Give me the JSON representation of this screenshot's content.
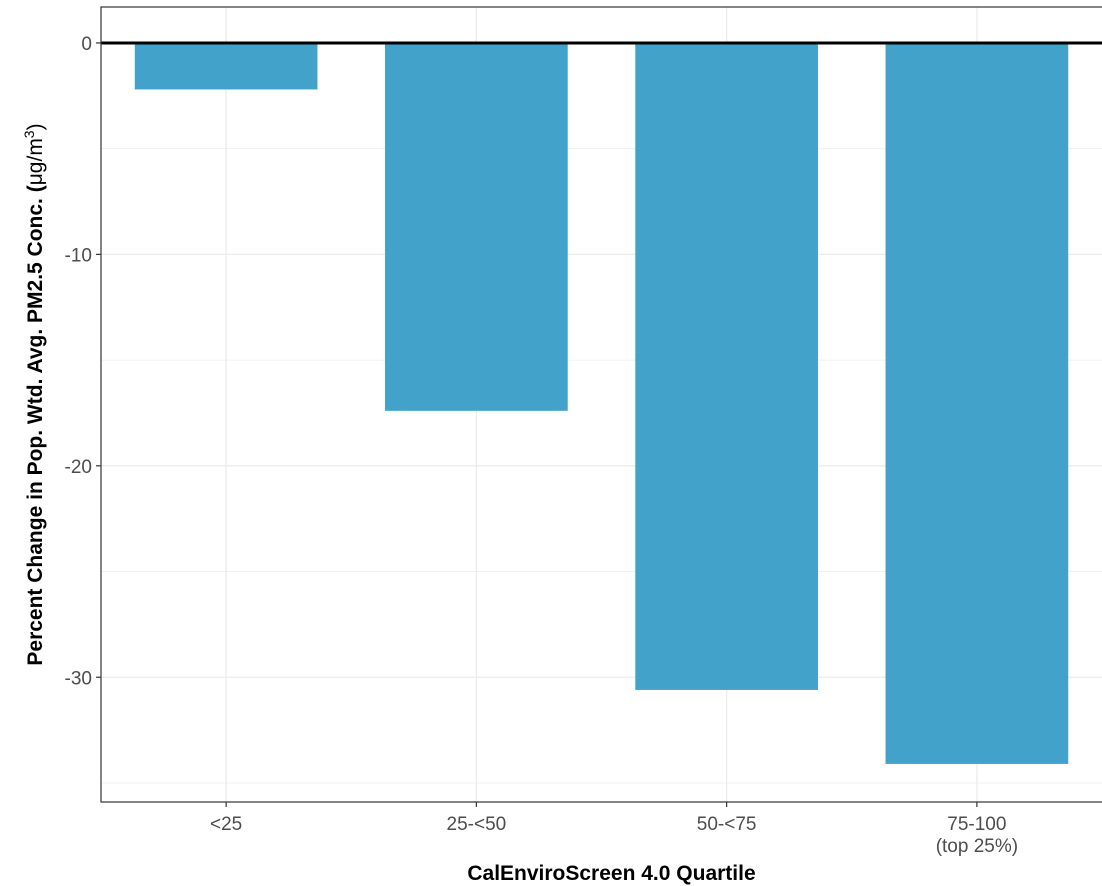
{
  "chart_data": {
    "type": "bar",
    "categories": [
      "<25",
      "25-<50",
      "50-<75",
      "75-100"
    ],
    "category_sublabels": [
      "",
      "",
      "",
      "(top 25%)"
    ],
    "values": [
      -2.2,
      -17.4,
      -30.6,
      -34.1
    ],
    "xlabel": "CalEnviroScreen 4.0 Quartile",
    "ylabel": "Percent Change in Pop. Wtd. Avg. PM2.5 Conc. (",
    "ylabel_unit": "μg/m",
    "ylabel_unit_sup": "3",
    "ylabel_close": ")",
    "ylim": [
      -35.9,
      1.7
    ],
    "yticks": [
      0,
      -10,
      -20,
      -30
    ],
    "grid": true,
    "zero_line": true,
    "bar_color": "#43A2CA"
  }
}
